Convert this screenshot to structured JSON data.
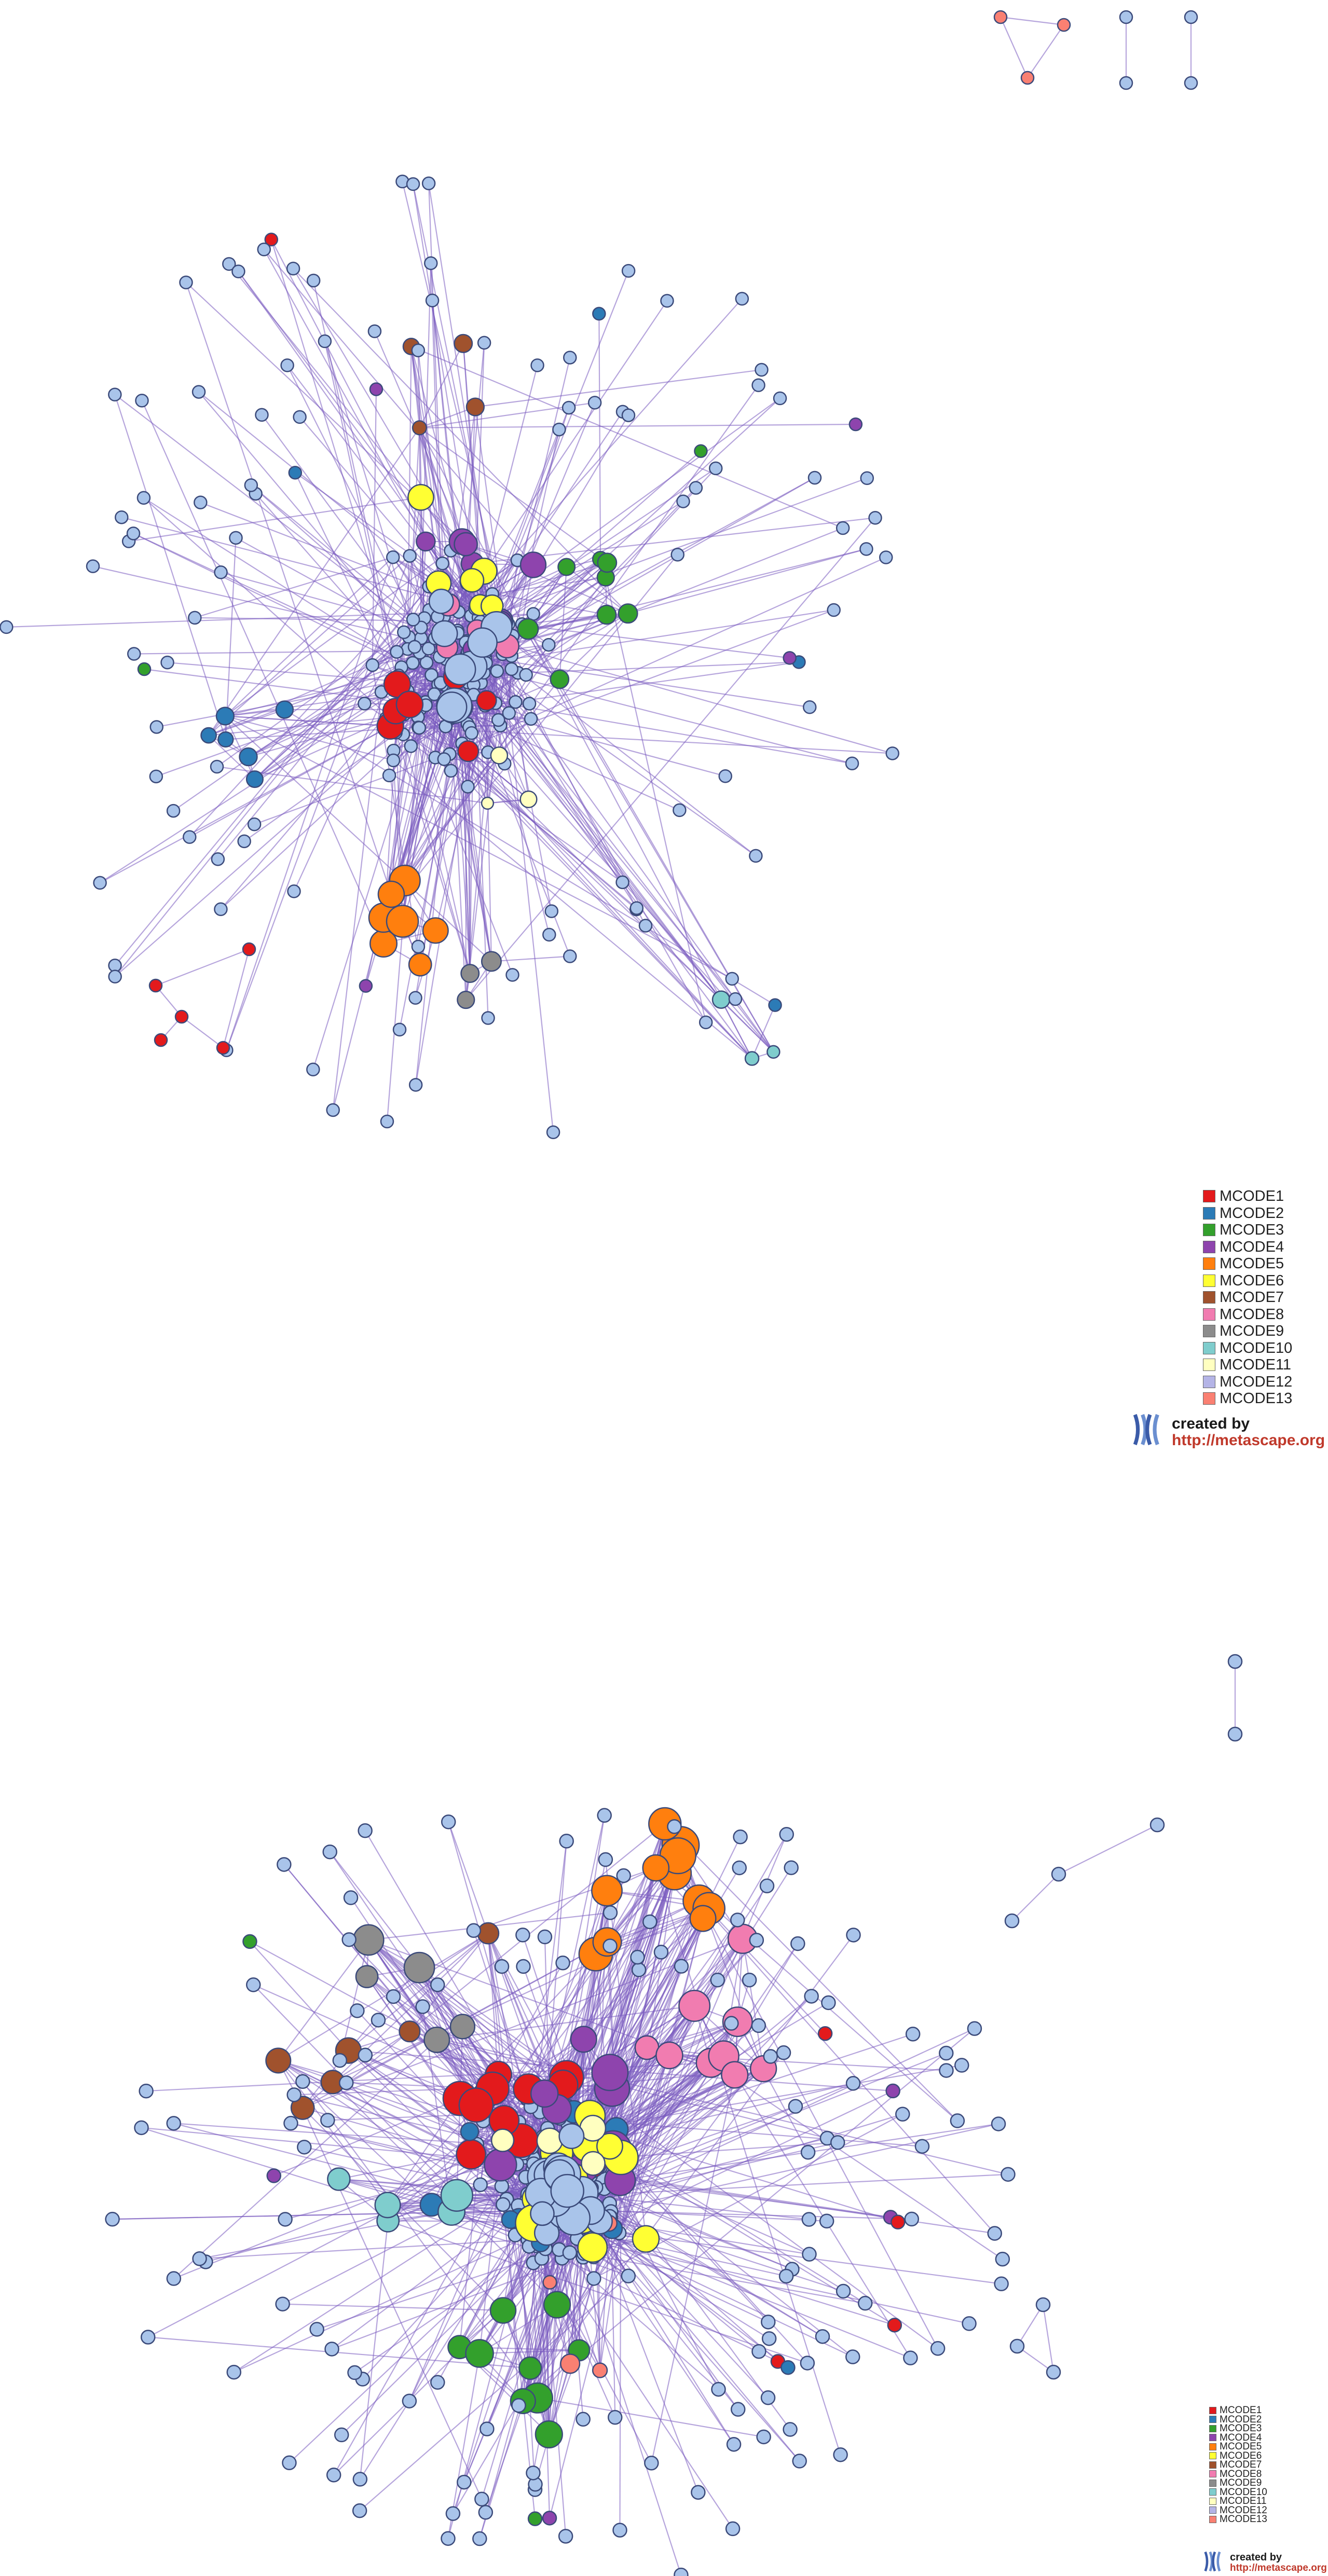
{
  "legend": {
    "items": [
      {
        "label": "MCODE1",
        "color": "#e31a1c"
      },
      {
        "label": "MCODE2",
        "color": "#2c7bb6"
      },
      {
        "label": "MCODE3",
        "color": "#33a02c"
      },
      {
        "label": "MCODE4",
        "color": "#8e44ad"
      },
      {
        "label": "MCODE5",
        "color": "#ff7f0e"
      },
      {
        "label": "MCODE6",
        "color": "#ffff33"
      },
      {
        "label": "MCODE7",
        "color": "#a0522d"
      },
      {
        "label": "MCODE8",
        "color": "#f17cb0"
      },
      {
        "label": "MCODE9",
        "color": "#8c8c8c"
      },
      {
        "label": "MCODE10",
        "color": "#7fcdcd"
      },
      {
        "label": "MCODE11",
        "color": "#ffffc0"
      },
      {
        "label": "MCODE12",
        "color": "#b4b4e6"
      },
      {
        "label": "MCODE13",
        "color": "#fa8072"
      }
    ]
  },
  "badge": {
    "created_by": "created by",
    "url": "http://metascape.org"
  },
  "colors": {
    "default_node": "#a9c4ea",
    "node_stroke": "#3b4a7a",
    "edge": "#7a5bbf"
  }
}
